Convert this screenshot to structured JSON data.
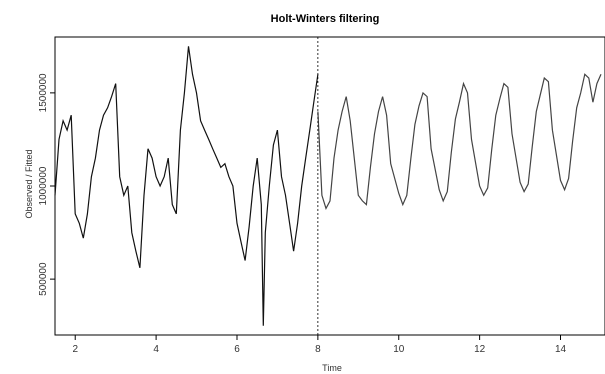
{
  "chart_data": {
    "type": "line",
    "title": "Holt-Winters filtering",
    "xlabel": "Time",
    "ylabel": "Observed / Fitted",
    "xlim": [
      1.5,
      15.1
    ],
    "ylim": [
      200000,
      1800000
    ],
    "x_ticks": [
      2,
      4,
      6,
      8,
      10,
      12,
      14
    ],
    "x_tick_labels": [
      "2",
      "4",
      "6",
      "8",
      "10",
      "12",
      "14"
    ],
    "y_ticks": [
      500000,
      1000000,
      1500000
    ],
    "y_tick_labels": [
      "500000",
      "1000000",
      "1500000"
    ],
    "grid": false,
    "legend": "none",
    "vline": 8,
    "series": [
      {
        "color": "#111111",
        "x": [
          1.5,
          1.6,
          1.7,
          1.8,
          1.9,
          2.0,
          2.1,
          2.2,
          2.3,
          2.4,
          2.5,
          2.6,
          2.7,
          2.8,
          2.9,
          3.0,
          3.1,
          3.2,
          3.3,
          3.4,
          3.5,
          3.6,
          3.7,
          3.8,
          3.9,
          4.0,
          4.1,
          4.2,
          4.3,
          4.4,
          4.5,
          4.6,
          4.7,
          4.8,
          4.9,
          5.0,
          5.1,
          5.2,
          5.3,
          5.4,
          5.5,
          5.6,
          5.7,
          5.8,
          5.9,
          6.0,
          6.1,
          6.2,
          6.3,
          6.4,
          6.5,
          6.6,
          6.65,
          6.7,
          6.8,
          6.9,
          7.0,
          7.1,
          7.2,
          7.3,
          7.4,
          7.5,
          7.6,
          7.7,
          7.8,
          7.9,
          8.0
        ],
        "y": [
          950000,
          1250000,
          1350000,
          1300000,
          1380000,
          850000,
          800000,
          720000,
          850000,
          1050000,
          1150000,
          1300000,
          1380000,
          1420000,
          1480000,
          1550000,
          1050000,
          950000,
          1000000,
          750000,
          650000,
          560000,
          950000,
          1200000,
          1150000,
          1050000,
          1000000,
          1050000,
          1150000,
          900000,
          850000,
          1300000,
          1500000,
          1750000,
          1600000,
          1500000,
          1350000,
          1300000,
          1250000,
          1200000,
          1150000,
          1100000,
          1120000,
          1050000,
          1000000,
          800000,
          700000,
          600000,
          780000,
          1000000,
          1150000,
          900000,
          250000,
          750000,
          1000000,
          1220000,
          1300000,
          1050000,
          950000,
          800000,
          650000,
          800000,
          1000000,
          1150000,
          1300000,
          1450000,
          1600000
        ]
      },
      {
        "color": "#444444",
        "x": [
          8.0,
          8.1,
          8.2,
          8.3,
          8.4,
          8.5,
          8.6,
          8.7,
          8.8,
          9.0,
          9.1,
          9.2,
          9.3,
          9.4,
          9.5,
          9.6,
          9.7,
          9.8,
          10.0,
          10.1,
          10.2,
          10.3,
          10.4,
          10.5,
          10.6,
          10.7,
          10.8,
          11.0,
          11.1,
          11.2,
          11.3,
          11.4,
          11.5,
          11.6,
          11.7,
          11.8,
          12.0,
          12.1,
          12.2,
          12.3,
          12.4,
          12.5,
          12.6,
          12.7,
          12.8,
          13.0,
          13.1,
          13.2,
          13.3,
          13.4,
          13.5,
          13.6,
          13.7,
          13.8,
          14.0,
          14.1,
          14.2,
          14.3,
          14.4,
          14.5,
          14.6,
          14.7,
          14.8,
          14.9,
          15.0
        ],
        "y": [
          1400000,
          950000,
          880000,
          920000,
          1150000,
          1300000,
          1400000,
          1480000,
          1350000,
          950000,
          920000,
          900000,
          1100000,
          1280000,
          1400000,
          1480000,
          1380000,
          1120000,
          960000,
          900000,
          950000,
          1150000,
          1330000,
          1430000,
          1500000,
          1480000,
          1200000,
          980000,
          920000,
          970000,
          1180000,
          1360000,
          1450000,
          1550000,
          1500000,
          1250000,
          1000000,
          950000,
          990000,
          1200000,
          1380000,
          1470000,
          1550000,
          1530000,
          1280000,
          1020000,
          970000,
          1010000,
          1210000,
          1400000,
          1490000,
          1580000,
          1560000,
          1300000,
          1030000,
          980000,
          1040000,
          1240000,
          1420000,
          1500000,
          1600000,
          1580000,
          1450000,
          1550000,
          1600000
        ]
      }
    ]
  }
}
